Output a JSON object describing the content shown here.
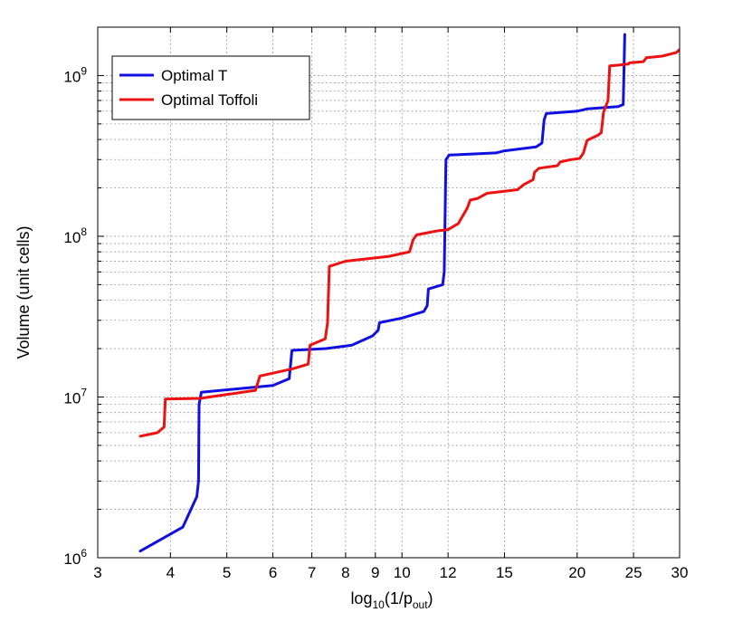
{
  "chart_data": {
    "type": "line",
    "xlabel_main": "log",
    "xlabel_sub": "10",
    "xlabel_mid": "(1/p",
    "xlabel_sub2": "out",
    "xlabel_end": ")",
    "ylabel": "Volume (unit cells)",
    "x_scale": "log",
    "y_scale": "log",
    "xlim": [
      3,
      30
    ],
    "ylim": [
      1000000,
      2000000000
    ],
    "grid": true,
    "legend_position": "top-left",
    "x_ticks": [
      3,
      4,
      5,
      6,
      7,
      8,
      9,
      10,
      12,
      15,
      20,
      25,
      30
    ],
    "x_tick_labels": [
      "3",
      "4",
      "5",
      "6",
      "7",
      "8",
      "9",
      "10",
      "12",
      "15",
      "20",
      "25",
      "30"
    ],
    "y_ticks": [
      1000000,
      10000000,
      100000000,
      1000000000
    ],
    "y_tick_bases": [
      "10",
      "10",
      "10",
      "10"
    ],
    "y_tick_exps": [
      "6",
      "7",
      "8",
      "9"
    ],
    "series": [
      {
        "name": "Optimal T",
        "color": "#1010e0",
        "points": [
          [
            3.55,
            1100000
          ],
          [
            4.2,
            1550000
          ],
          [
            4.44,
            2400000
          ],
          [
            4.47,
            3000000
          ],
          [
            4.48,
            9000000
          ],
          [
            4.52,
            10700000
          ],
          [
            6.0,
            11800000
          ],
          [
            6.4,
            13000000
          ],
          [
            6.47,
            19500000
          ],
          [
            7.4,
            20000000
          ],
          [
            8.2,
            21000000
          ],
          [
            8.9,
            24000000
          ],
          [
            9.1,
            26000000
          ],
          [
            9.15,
            29000000
          ],
          [
            10.0,
            31000000
          ],
          [
            10.9,
            34000000
          ],
          [
            11.05,
            37000000
          ],
          [
            11.1,
            47000000
          ],
          [
            11.75,
            50000000
          ],
          [
            11.82,
            60000000
          ],
          [
            11.9,
            300000000
          ],
          [
            12.05,
            320000000
          ],
          [
            14.5,
            330000000
          ],
          [
            15.0,
            340000000
          ],
          [
            17.0,
            360000000
          ],
          [
            17.4,
            380000000
          ],
          [
            17.55,
            530000000
          ],
          [
            17.7,
            580000000
          ],
          [
            20.0,
            600000000
          ],
          [
            20.8,
            620000000
          ],
          [
            23.5,
            640000000
          ],
          [
            24.0,
            660000000
          ],
          [
            24.15,
            1800000000
          ]
        ]
      },
      {
        "name": "Optimal Toffoli",
        "color": "#ee1111",
        "points": [
          [
            3.55,
            5700000
          ],
          [
            3.8,
            6000000
          ],
          [
            3.9,
            6500000
          ],
          [
            3.92,
            9700000
          ],
          [
            4.5,
            9800000
          ],
          [
            5.6,
            11000000
          ],
          [
            5.7,
            13500000
          ],
          [
            6.5,
            15000000
          ],
          [
            6.9,
            16000000
          ],
          [
            6.95,
            21000000
          ],
          [
            7.38,
            23000000
          ],
          [
            7.45,
            29000000
          ],
          [
            7.5,
            65000000
          ],
          [
            8.0,
            70000000
          ],
          [
            9.5,
            75000000
          ],
          [
            10.3,
            80000000
          ],
          [
            10.45,
            95000000
          ],
          [
            10.6,
            102000000
          ],
          [
            11.5,
            108000000
          ],
          [
            12.0,
            110000000
          ],
          [
            12.5,
            120000000
          ],
          [
            12.95,
            150000000
          ],
          [
            13.1,
            168000000
          ],
          [
            13.5,
            172000000
          ],
          [
            14.0,
            185000000
          ],
          [
            15.8,
            195000000
          ],
          [
            16.2,
            210000000
          ],
          [
            16.8,
            225000000
          ],
          [
            16.9,
            250000000
          ],
          [
            17.2,
            265000000
          ],
          [
            18.5,
            275000000
          ],
          [
            18.7,
            290000000
          ],
          [
            19.5,
            300000000
          ],
          [
            20.2,
            305000000
          ],
          [
            20.5,
            330000000
          ],
          [
            20.8,
            395000000
          ],
          [
            21.7,
            425000000
          ],
          [
            22.0,
            440000000
          ],
          [
            22.2,
            590000000
          ],
          [
            22.6,
            700000000
          ],
          [
            22.75,
            1150000000
          ],
          [
            23.5,
            1160000000
          ],
          [
            24.0,
            1170000000
          ],
          [
            24.5,
            1180000000
          ],
          [
            24.6,
            1200000000
          ],
          [
            26.0,
            1220000000
          ],
          [
            26.3,
            1290000000
          ],
          [
            28.0,
            1320000000
          ],
          [
            29.6,
            1390000000
          ],
          [
            30.0,
            1450000000
          ]
        ]
      }
    ]
  }
}
